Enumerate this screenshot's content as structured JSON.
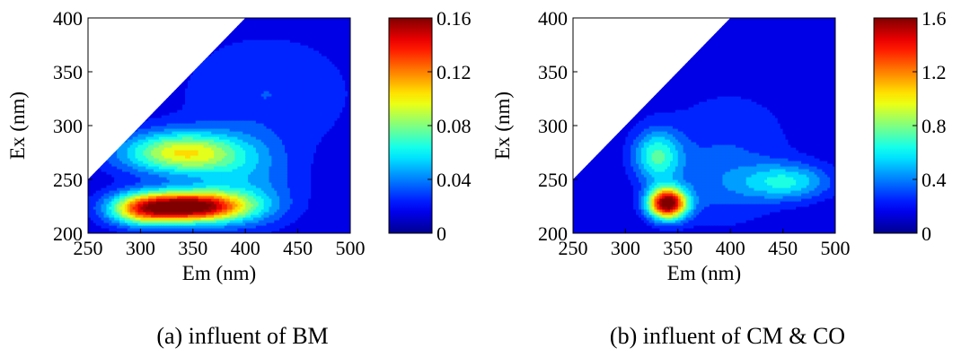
{
  "charts": [
    {
      "caption": "(a) influent of BM",
      "chart_data": {
        "type": "heatmap",
        "title": "",
        "xlabel": "Em (nm)",
        "ylabel": "Ex (nm)",
        "xlim": [
          250,
          500
        ],
        "ylim": [
          200,
          400
        ],
        "x_ticks": [
          "250",
          "300",
          "350",
          "400",
          "450",
          "500"
        ],
        "y_ticks": [
          "200",
          "250",
          "300",
          "350",
          "400"
        ],
        "colorbar": {
          "min": 0,
          "max": 0.16,
          "ticks": [
            "0",
            "0.04",
            "0.08",
            "0.12",
            "0.16"
          ]
        },
        "masked_region": "Em < Ex (upper-left triangle blank)",
        "background_level": 0.012,
        "peaks": [
          {
            "em": 345,
            "ex": 225,
            "intensity": 0.155,
            "em_spread": 38,
            "ex_spread": 10
          },
          {
            "em": 300,
            "ex": 222,
            "intensity": 0.06,
            "em_spread": 22,
            "ex_spread": 11
          },
          {
            "em": 340,
            "ex": 275,
            "intensity": 0.085,
            "em_spread": 42,
            "ex_spread": 14
          },
          {
            "em": 400,
            "ex": 240,
            "intensity": 0.03,
            "em_spread": 35,
            "ex_spread": 25
          },
          {
            "em": 420,
            "ex": 330,
            "intensity": 0.018,
            "em_spread": 60,
            "ex_spread": 40
          }
        ]
      }
    },
    {
      "caption": "(b) influent of CM & CO",
      "chart_data": {
        "type": "heatmap",
        "title": "",
        "xlabel": "Em (nm)",
        "ylabel": "Ex (nm)",
        "xlim": [
          250,
          500
        ],
        "ylim": [
          200,
          400
        ],
        "x_ticks": [
          "250",
          "300",
          "350",
          "400",
          "450",
          "500"
        ],
        "y_ticks": [
          "200",
          "250",
          "300",
          "350",
          "400"
        ],
        "colorbar": {
          "min": 0,
          "max": 1.6,
          "ticks": [
            "0",
            "0.4",
            "0.8",
            "1.2",
            "1.6"
          ]
        },
        "masked_region": "Em < Ex (upper-left triangle blank)",
        "background_level": 0.1,
        "peaks": [
          {
            "em": 340,
            "ex": 228,
            "intensity": 1.55,
            "em_spread": 13,
            "ex_spread": 10
          },
          {
            "em": 330,
            "ex": 272,
            "intensity": 0.55,
            "em_spread": 16,
            "ex_spread": 17
          },
          {
            "em": 455,
            "ex": 248,
            "intensity": 0.45,
            "em_spread": 30,
            "ex_spread": 12
          },
          {
            "em": 390,
            "ex": 245,
            "intensity": 0.2,
            "em_spread": 40,
            "ex_spread": 30
          },
          {
            "em": 400,
            "ex": 300,
            "intensity": 0.12,
            "em_spread": 60,
            "ex_spread": 40
          }
        ]
      }
    }
  ],
  "colormap": [
    "#00008f",
    "#0000ff",
    "#00ffff",
    "#ffff00",
    "#ff0000",
    "#800000"
  ]
}
